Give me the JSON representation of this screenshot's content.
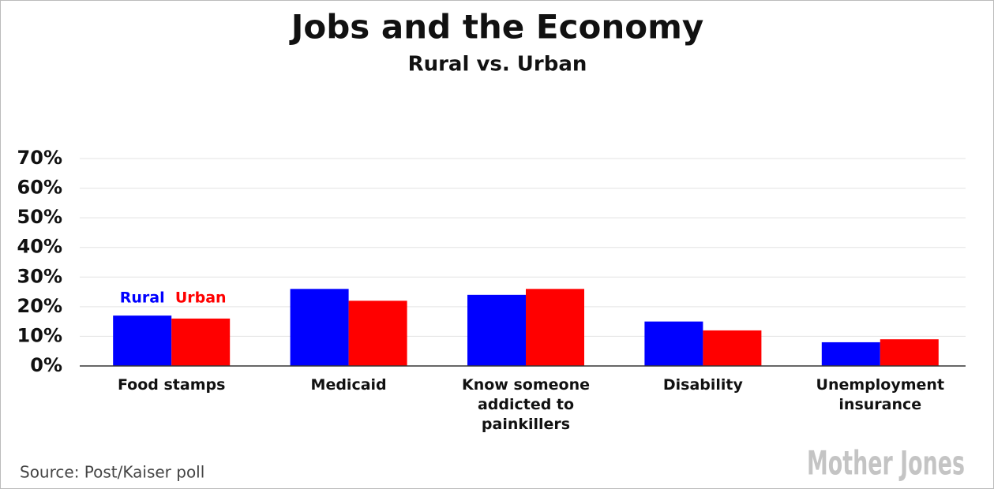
{
  "chart_data": {
    "type": "bar",
    "title": "Jobs and the Economy",
    "subtitle": "Rural vs. Urban",
    "categories": [
      "Food stamps",
      "Medicaid",
      "Know someone addicted to painkillers",
      "Disability",
      "Unemployment insurance"
    ],
    "series": [
      {
        "name": "Rural",
        "color": "#0000ff",
        "values": [
          17,
          26,
          24,
          15,
          8
        ]
      },
      {
        "name": "Urban",
        "color": "#ff0000",
        "values": [
          16,
          22,
          26,
          12,
          9
        ]
      }
    ],
    "ylim": [
      0,
      70
    ],
    "yticks": [
      {
        "value": 0,
        "label": "0%"
      },
      {
        "value": 10,
        "label": "10%"
      },
      {
        "value": 20,
        "label": "20%"
      },
      {
        "value": 30,
        "label": "30%"
      },
      {
        "value": 40,
        "label": "40%"
      },
      {
        "value": 50,
        "label": "50%"
      },
      {
        "value": 60,
        "label": "60%"
      },
      {
        "value": 70,
        "label": "70%"
      }
    ],
    "grid": true,
    "source": "Source:  Post/Kaiser poll",
    "logo": "Mother Jones"
  }
}
